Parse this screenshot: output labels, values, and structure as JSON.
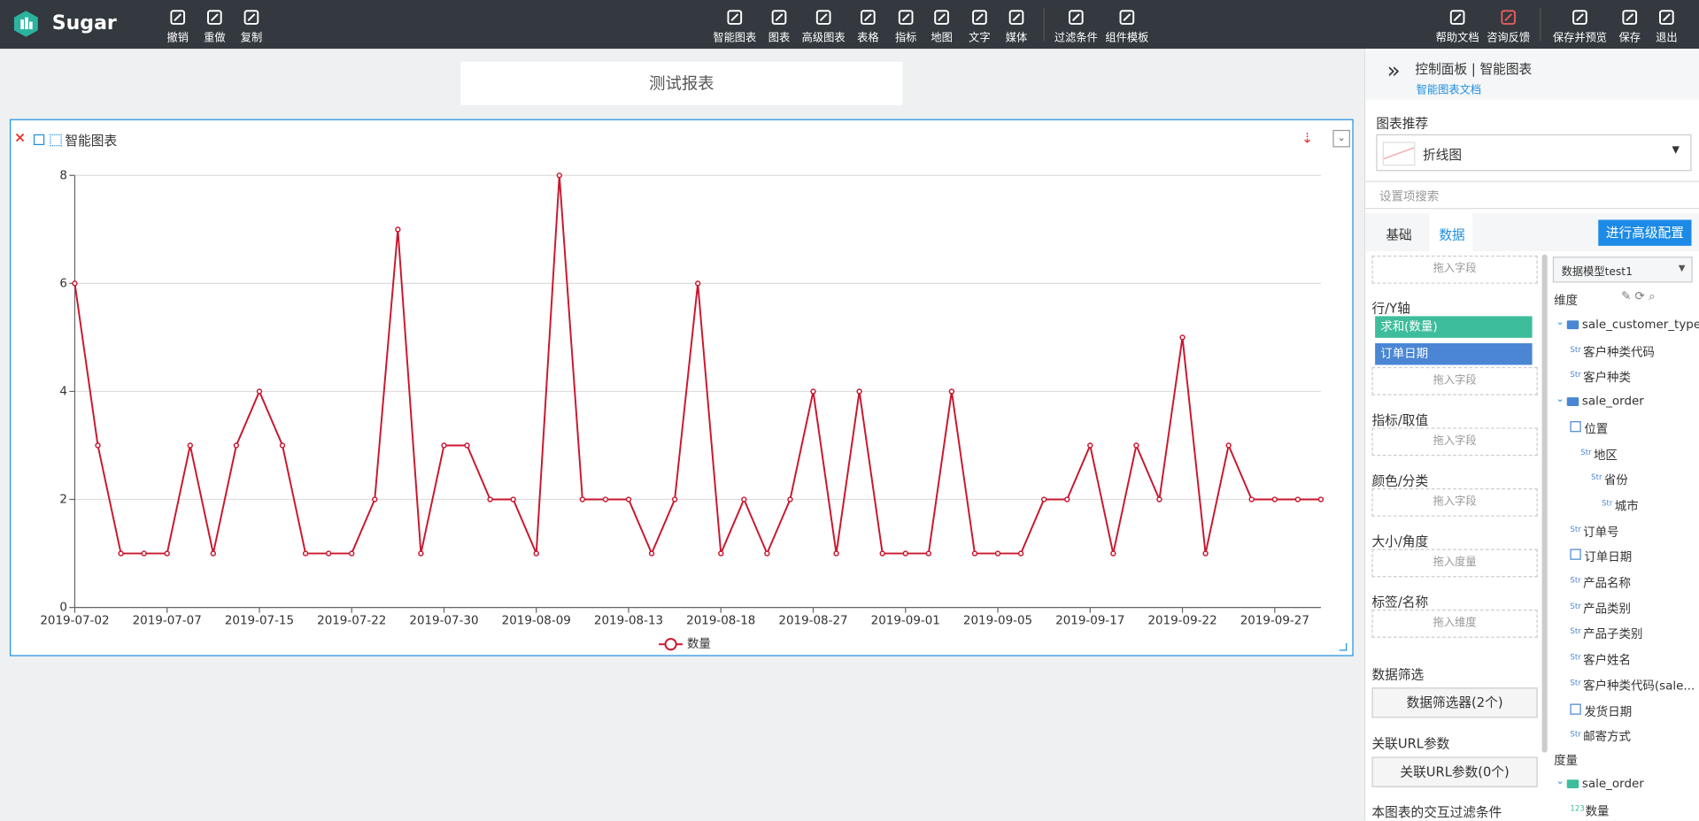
{
  "toolbar": {
    "brand": "Sugar",
    "left": [
      "撤销",
      "重做",
      "复制"
    ],
    "center": [
      "智能图表",
      "图表",
      "高级图表",
      "表格",
      "指标",
      "地图",
      "文字",
      "媒体",
      "过滤条件",
      "组件模板"
    ],
    "right": [
      "帮助文档",
      "咨询反馈",
      "保存并预览",
      "保存",
      "退出"
    ]
  },
  "report_title": "测试报表",
  "widget": {
    "title": "智能图表",
    "chart_data": {
      "type": "line",
      "categories": [
        "2019-07-02",
        null,
        null,
        null,
        "2019-07-07",
        null,
        null,
        null,
        "2019-07-15",
        null,
        null,
        null,
        "2019-07-22",
        null,
        null,
        null,
        "2019-07-30",
        null,
        null,
        null,
        "2019-08-09",
        null,
        null,
        null,
        "2019-08-13",
        null,
        null,
        null,
        "2019-08-18",
        null,
        null,
        null,
        "2019-08-27",
        null,
        null,
        null,
        "2019-09-01",
        null,
        null,
        null,
        "2019-09-05",
        null,
        null,
        null,
        "2019-09-17",
        null,
        null,
        null,
        "2019-09-22",
        null,
        null,
        null,
        "2019-09-27",
        null,
        null
      ],
      "series": [
        {
          "name": "数量",
          "color": "#c9172f",
          "values": [
            6,
            3,
            1,
            1,
            1,
            3,
            1,
            3,
            4,
            3,
            1,
            1,
            1,
            2,
            7,
            1,
            3,
            3,
            2,
            2,
            1,
            8,
            2,
            2,
            2,
            1,
            2,
            6,
            1,
            2,
            1,
            2,
            4,
            1,
            4,
            1,
            1,
            1,
            4,
            1,
            1,
            1,
            2,
            2,
            3,
            1,
            3,
            2,
            5,
            1,
            3,
            2,
            2,
            2,
            2
          ]
        }
      ],
      "ylim": [
        0,
        8
      ],
      "yticks": [
        0,
        2,
        4,
        6,
        8
      ],
      "grid": true,
      "legend": "bottom"
    }
  },
  "panel": {
    "header": "控制面板 | 智能图表",
    "doc_link": "智能图表文档",
    "recommend_label": "图表推荐",
    "chart_type": "折线图",
    "search_placeholder": "设置项搜索",
    "tabs": [
      "基础",
      "数据"
    ],
    "advanced_button": "进行高级配置",
    "slots": [
      {
        "label": null,
        "chips": [],
        "drop": "拖入字段"
      },
      {
        "label": "行/Y轴",
        "chips": [
          "求和(数量)",
          "订单日期"
        ],
        "drop": "拖入字段"
      },
      {
        "label": "指标/取值",
        "chips": [],
        "drop": "拖入字段"
      },
      {
        "label": "颜色/分类",
        "chips": [],
        "drop": "拖入字段"
      },
      {
        "label": "大小/角度",
        "chips": [],
        "drop": "拖入度量"
      },
      {
        "label": "标签/名称",
        "chips": [],
        "drop": "拖入维度"
      }
    ],
    "filter_label": "数据筛选",
    "filter_button": "数据筛选器(2个)",
    "url_label": "关联URL参数",
    "url_button": "关联URL参数(0个)",
    "interaction_label": "本图表的交互过滤条件",
    "model": "数据模型test1",
    "dimension_label": "维度",
    "dimensions": [
      {
        "name": "sale_customer_type",
        "kind": "folder",
        "level": 0
      },
      {
        "type": "Str",
        "name": "客户种类代码",
        "level": 1
      },
      {
        "type": "Str",
        "name": "客户种类",
        "level": 1
      },
      {
        "name": "sale_order",
        "kind": "folder",
        "level": 0
      },
      {
        "name": "位置",
        "kind": "hier",
        "level": 1
      },
      {
        "type": "Str",
        "name": "地区",
        "level": 2
      },
      {
        "type": "Str",
        "name": "省份",
        "level": 3
      },
      {
        "type": "Str",
        "name": "城市",
        "level": 4
      },
      {
        "type": "Str",
        "name": "订单号",
        "level": 1
      },
      {
        "name": "订单日期",
        "kind": "date",
        "level": 1
      },
      {
        "type": "Str",
        "name": "产品名称",
        "level": 1
      },
      {
        "type": "Str",
        "name": "产品类别",
        "level": 1
      },
      {
        "type": "Str",
        "name": "产品子类别",
        "level": 1
      },
      {
        "type": "Str",
        "name": "客户姓名",
        "level": 1
      },
      {
        "type": "Str",
        "name": "客户种类代码(sale...",
        "level": 1
      },
      {
        "name": "发货日期",
        "kind": "date",
        "level": 1
      },
      {
        "type": "Str",
        "name": "邮寄方式",
        "level": 1
      }
    ],
    "measure_label": "度量",
    "measures": [
      {
        "name": "sale_order",
        "kind": "folder",
        "level": 0
      },
      {
        "type": "123",
        "name": "数量",
        "level": 1
      }
    ]
  }
}
